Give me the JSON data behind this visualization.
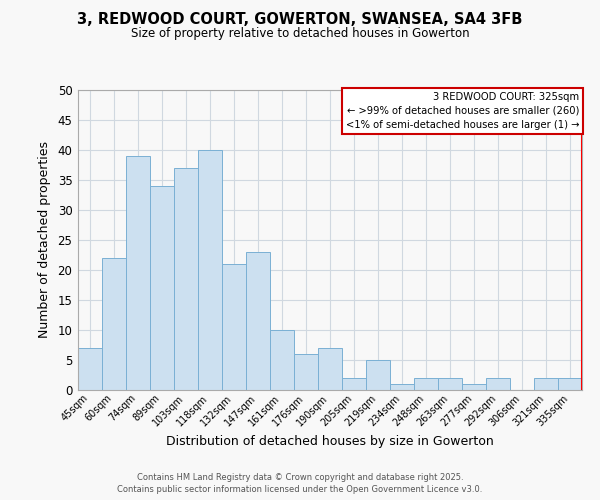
{
  "title": "3, REDWOOD COURT, GOWERTON, SWANSEA, SA4 3FB",
  "subtitle": "Size of property relative to detached houses in Gowerton",
  "xlabel": "Distribution of detached houses by size in Gowerton",
  "ylabel": "Number of detached properties",
  "bar_labels": [
    "45sqm",
    "60sqm",
    "74sqm",
    "89sqm",
    "103sqm",
    "118sqm",
    "132sqm",
    "147sqm",
    "161sqm",
    "176sqm",
    "190sqm",
    "205sqm",
    "219sqm",
    "234sqm",
    "248sqm",
    "263sqm",
    "277sqm",
    "292sqm",
    "306sqm",
    "321sqm",
    "335sqm"
  ],
  "bar_values": [
    7,
    22,
    39,
    34,
    37,
    40,
    21,
    23,
    10,
    6,
    7,
    2,
    5,
    1,
    2,
    2,
    1,
    2,
    0,
    2,
    2
  ],
  "bar_color": "#cce0f0",
  "bar_edge_color": "#7ab0d4",
  "ylim": [
    0,
    50
  ],
  "yticks": [
    0,
    5,
    10,
    15,
    20,
    25,
    30,
    35,
    40,
    45,
    50
  ],
  "grid_color": "#d0d8e0",
  "bg_color": "#f8f8f8",
  "redline_bar_index": 20,
  "legend_title": "3 REDWOOD COURT: 325sqm",
  "legend_line1": "← >99% of detached houses are smaller (260)",
  "legend_line2": "<1% of semi-detached houses are larger (1) →",
  "legend_box_color": "#ffffff",
  "legend_box_edge": "#cc0000",
  "footer1": "Contains HM Land Registry data © Crown copyright and database right 2025.",
  "footer2": "Contains public sector information licensed under the Open Government Licence v3.0."
}
